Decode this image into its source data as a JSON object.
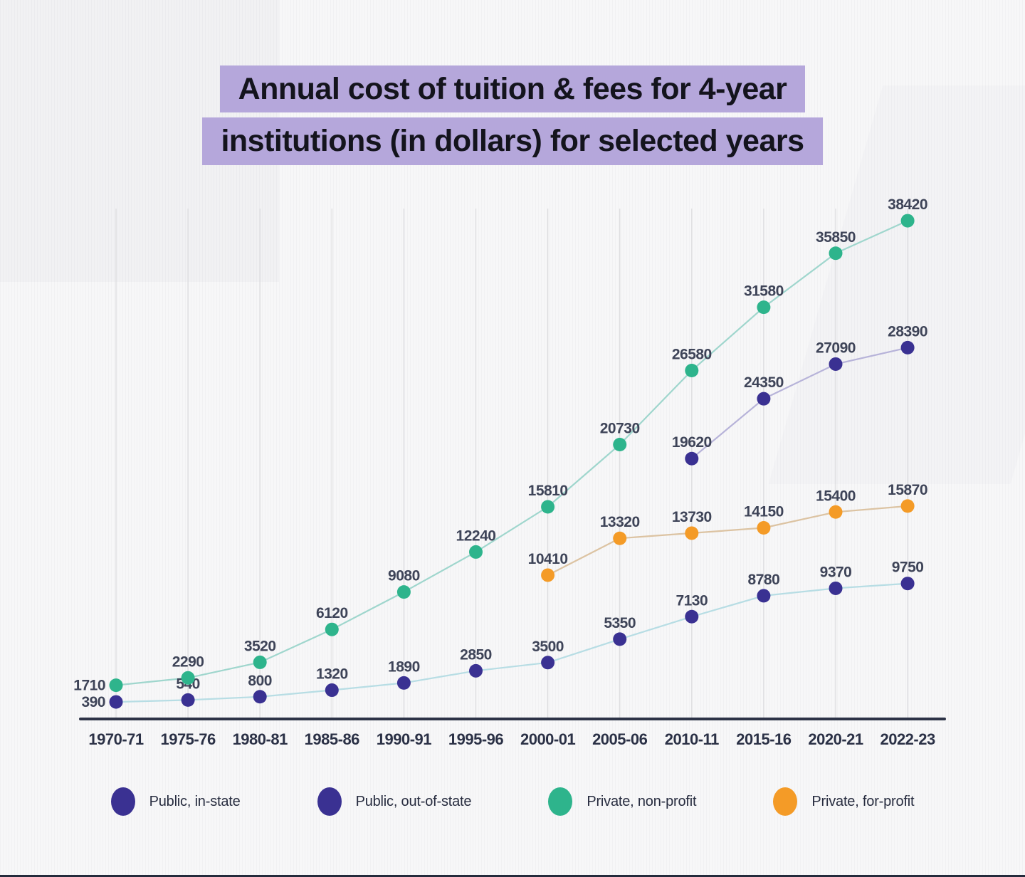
{
  "title": {
    "line1": "Annual cost of tuition & fees for 4-year",
    "line2": "institutions (in dollars) for selected years"
  },
  "colors": {
    "title_highlight": "#b5a7db",
    "title_text": "#14141d",
    "axis": "#2d3347",
    "gridline": "#dcdcdf",
    "data_label": "#3e4458",
    "tick_label": "#2b3146",
    "public_dot": "#3a3192",
    "private_nonprofit_dot": "#2eb48c",
    "private_forprofit_dot": "#f49b27"
  },
  "chart_data": {
    "type": "line",
    "title": "Annual cost of tuition & fees for 4-year institutions (in dollars) for selected years",
    "xlabel": "",
    "ylabel": "",
    "ylim": [
      0,
      40000
    ],
    "grid": "vertical-only",
    "legend_position": "bottom",
    "categories": [
      "1970-71",
      "1975-76",
      "1980-81",
      "1985-86",
      "1990-91",
      "1995-96",
      "2000-01",
      "2005-06",
      "2010-11",
      "2015-16",
      "2020-21",
      "2022-23"
    ],
    "series": [
      {
        "name": "Public, in-state",
        "line_color": "#b7dde4",
        "dot_color": "#3a3192",
        "values": [
          390,
          540,
          800,
          1320,
          1890,
          2850,
          3500,
          5350,
          7130,
          8780,
          9370,
          9750
        ]
      },
      {
        "name": "Public, out-of-state",
        "line_color": "#b7b3d9",
        "dot_color": "#3a3192",
        "values": [
          null,
          null,
          null,
          null,
          null,
          null,
          null,
          null,
          19620,
          24350,
          27090,
          28390
        ]
      },
      {
        "name": "Private, non-profit",
        "line_color": "#9fd6cd",
        "dot_color": "#2eb48c",
        "values": [
          1710,
          2290,
          3520,
          6120,
          9080,
          12240,
          15810,
          20730,
          26580,
          31580,
          35850,
          38420
        ]
      },
      {
        "name": "Private, for-profit",
        "line_color": "#dcc3a2",
        "dot_color": "#f49b27",
        "values": [
          null,
          null,
          null,
          null,
          null,
          null,
          10410,
          13320,
          13730,
          14150,
          15400,
          15870
        ]
      }
    ]
  },
  "legend": {
    "items": [
      {
        "label": "Public, in-state",
        "color": "#3a3192"
      },
      {
        "label": "Public, out-of-state",
        "color": "#3a3192"
      },
      {
        "label": "Private, non-profit",
        "color": "#2eb48c"
      },
      {
        "label": "Private, for-profit",
        "color": "#f49b27"
      }
    ]
  }
}
